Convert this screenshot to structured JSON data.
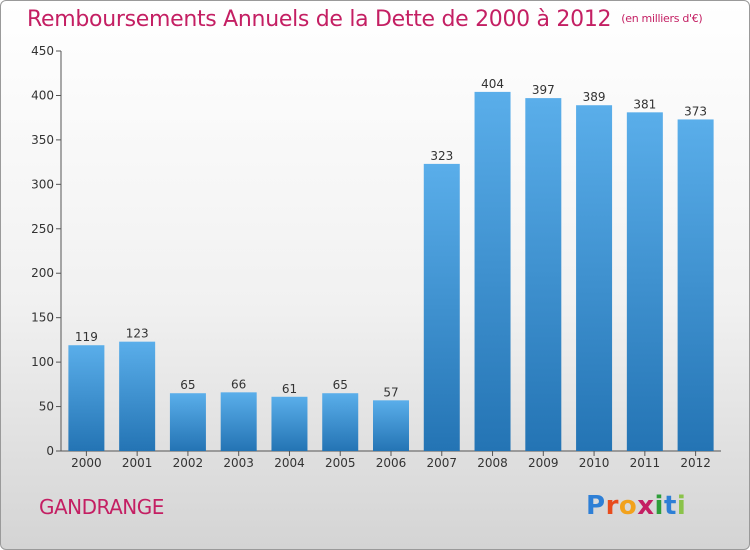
{
  "title": "Remboursements Annuels de la Dette de 2000 à 2012",
  "unit_note": "(en milliers d'€)",
  "place": "GANDRANGE",
  "logo_letters": [
    "P",
    "r",
    "o",
    "x",
    "i",
    "t",
    "i"
  ],
  "logo_colors": [
    "#2e7fd6",
    "#e84c1d",
    "#f2a21c",
    "#c41f63",
    "#2e9e3a",
    "#2e7fd6",
    "#8bc34a"
  ],
  "chart_data": {
    "type": "bar",
    "title": "Remboursements Annuels de la Dette de 2000 à 2012",
    "categories": [
      "2000",
      "2001",
      "2002",
      "2003",
      "2004",
      "2005",
      "2006",
      "2007",
      "2008",
      "2009",
      "2010",
      "2011",
      "2012"
    ],
    "values": [
      119,
      123,
      65,
      66,
      61,
      65,
      57,
      323,
      404,
      397,
      389,
      381,
      373
    ],
    "ylim": [
      0,
      450
    ],
    "yticks": [
      0,
      50,
      100,
      150,
      200,
      250,
      300,
      350,
      400,
      450
    ],
    "grid": false,
    "bar_color_top": "#5aaeea",
    "bar_color_bottom": "#2474b4"
  }
}
